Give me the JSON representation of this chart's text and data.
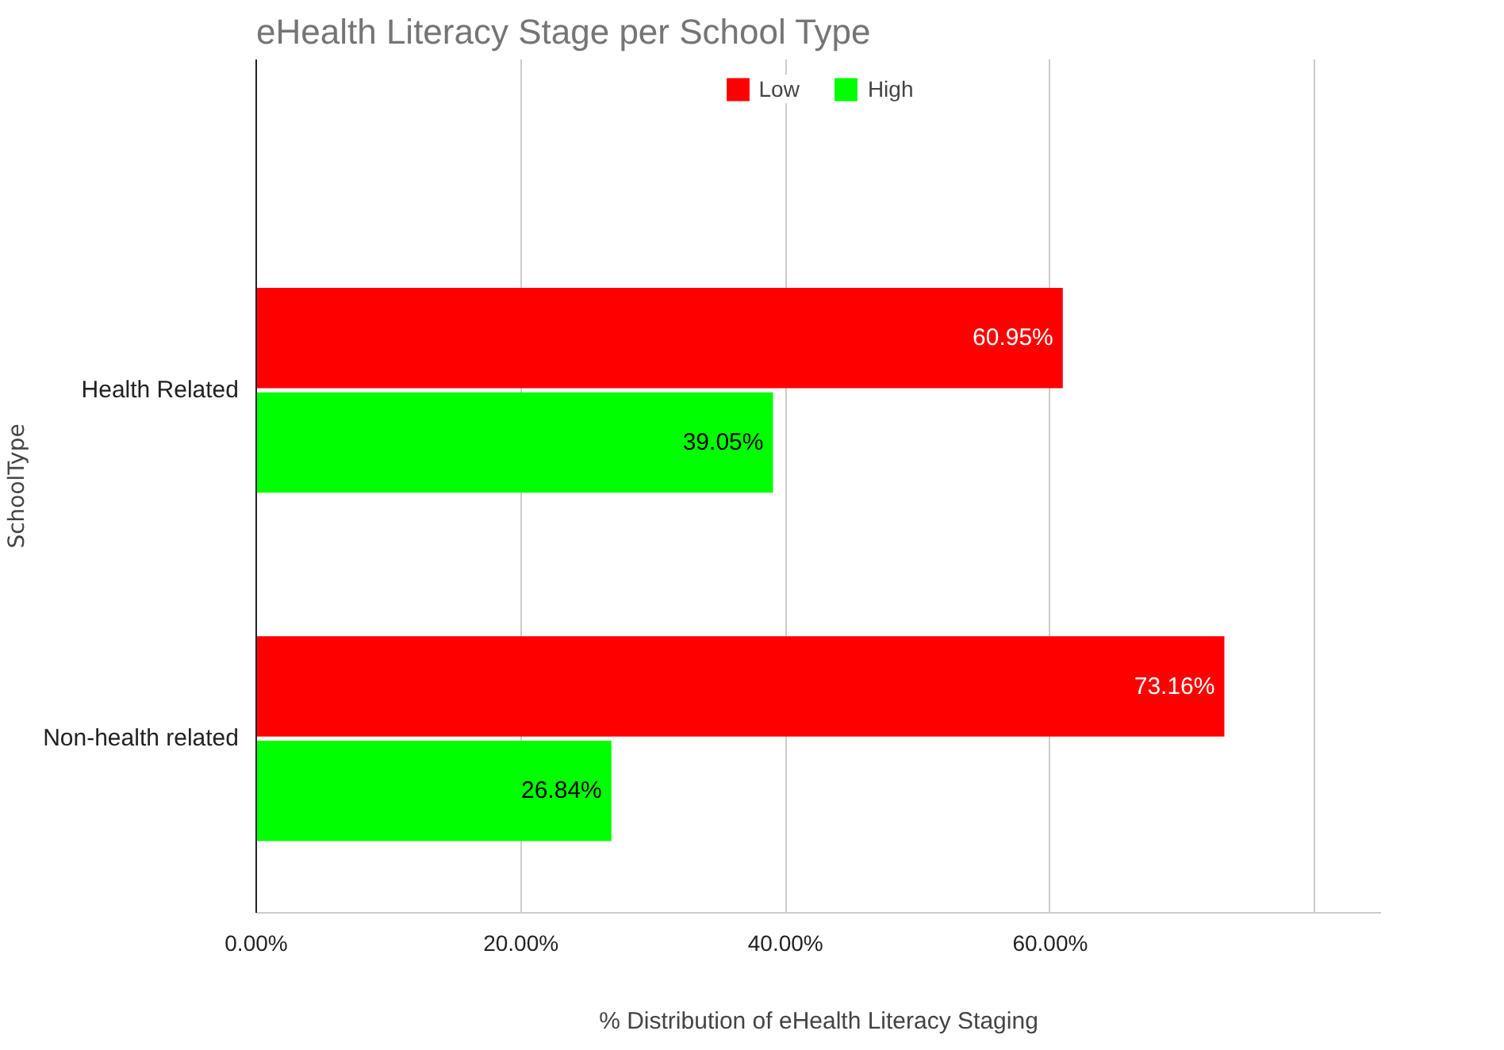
{
  "chart_data": {
    "type": "bar",
    "orientation": "horizontal",
    "title": "eHealth Literacy Stage per School Type",
    "xlabel": "% Distribution of eHealth Literacy Staging",
    "ylabel": "SchoolType",
    "categories": [
      "Health Related",
      "Non-health related"
    ],
    "series": [
      {
        "name": "Low",
        "color": "#ff0000",
        "values": [
          60.95,
          73.16
        ],
        "value_labels": [
          "60.95%",
          "73.16%"
        ]
      },
      {
        "name": "High",
        "color": "#00ff00",
        "values": [
          39.05,
          26.84
        ],
        "value_labels": [
          "39.05%",
          "26.84%"
        ]
      }
    ],
    "xlim": [
      0,
      85
    ],
    "xticks": [
      {
        "value": 0,
        "label": "0.00%"
      },
      {
        "value": 20,
        "label": "20.00%"
      },
      {
        "value": 40,
        "label": "40.00%"
      },
      {
        "value": 60,
        "label": "60.00%"
      },
      {
        "value": 80,
        "label": null
      }
    ],
    "grid": "x",
    "legend": "top"
  }
}
